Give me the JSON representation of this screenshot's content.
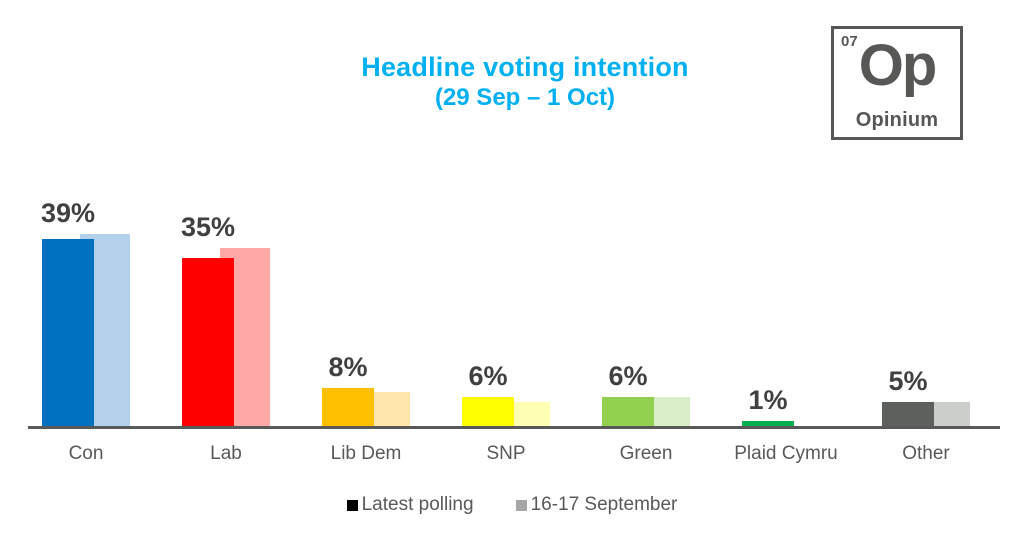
{
  "header": {
    "title": "Headline voting intention",
    "subtitle": "(29 Sep – 1 Oct)",
    "title_color": "#00B0F0"
  },
  "logo": {
    "number": "07",
    "symbol": "Op",
    "name": "Opinium",
    "color": "#575756"
  },
  "chart_data": {
    "type": "bar",
    "title": "Headline voting intention (29 Sep – 1 Oct)",
    "categories": [
      "Con",
      "Lab",
      "Lib Dem",
      "SNP",
      "Green",
      "Plaid Cymru",
      "Other"
    ],
    "series": [
      {
        "name": "Latest polling",
        "values": [
          39,
          35,
          8,
          6,
          6,
          1,
          5
        ],
        "colors": [
          "#0070C0",
          "#FF0000",
          "#FFC000",
          "#FFFF00",
          "#92D050",
          "#00B050",
          "#5C615E"
        ]
      },
      {
        "name": "16-17 September",
        "values": [
          40,
          37,
          7,
          5,
          6,
          0,
          5
        ],
        "colors": [
          "#B3D1EA",
          "#FFA8A8",
          "#FFE6AD",
          "#FFFFB3",
          "#D9EFC9",
          "#D9EFC9",
          "#CCCECC"
        ]
      }
    ],
    "data_labels": [
      "39%",
      "35%",
      "8%",
      "6%",
      "6%",
      "1%",
      "5%"
    ],
    "data_label_series": "Latest polling",
    "ylim": [
      0,
      42
    ],
    "grid": false,
    "legend_position": "bottom"
  },
  "legend": {
    "items": [
      {
        "label": "Latest polling",
        "swatch": "#000000"
      },
      {
        "label": "16-17 September",
        "swatch": "#A6A6A6"
      }
    ]
  },
  "colors": {
    "axis": "#595959",
    "data_label": "#404040",
    "category_label": "#595959",
    "legend_text": "#595959",
    "background": "#FFFFFF"
  }
}
